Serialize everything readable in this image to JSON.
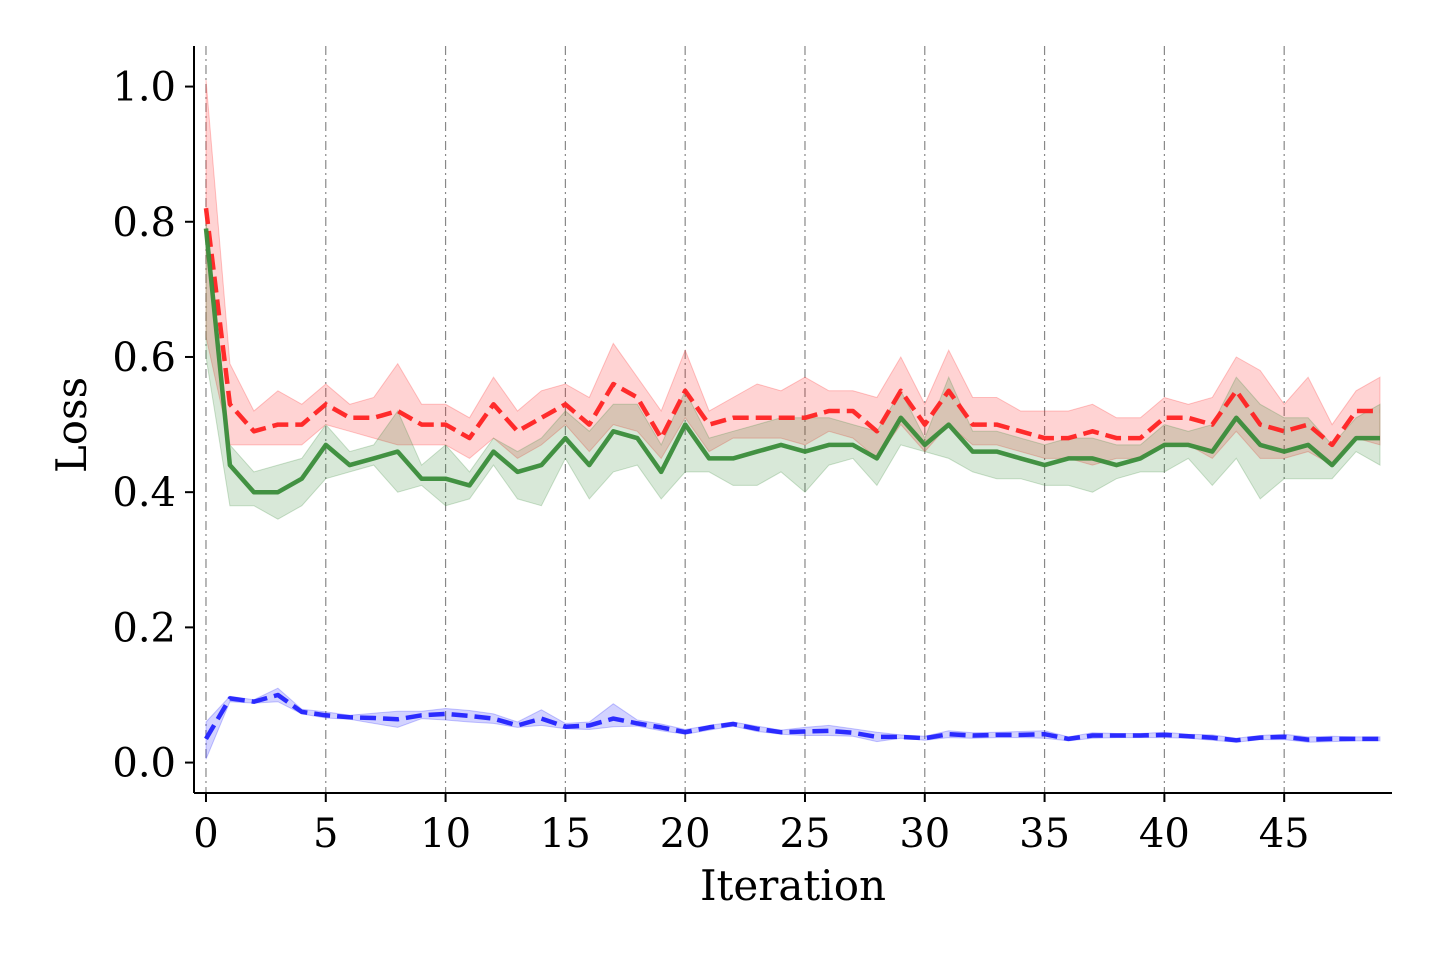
{
  "chart_data": {
    "type": "line",
    "title": "",
    "xlabel": "Iteration",
    "ylabel": "Loss",
    "xlim": [
      -0.5,
      49.5
    ],
    "ylim": [
      -0.045,
      1.06
    ],
    "xticks": [
      0,
      5,
      10,
      15,
      20,
      25,
      30,
      35,
      40,
      45
    ],
    "xtick_labels": [
      "0",
      "5",
      "10",
      "15",
      "20",
      "25",
      "30",
      "35",
      "40",
      "45"
    ],
    "yticks": [
      0.0,
      0.2,
      0.4,
      0.6,
      0.8,
      1.0
    ],
    "ytick_labels": [
      "0.0",
      "0.2",
      "0.4",
      "0.6",
      "0.8",
      "1.0"
    ],
    "grid": "vertical dash-dot",
    "x": [
      0,
      1,
      2,
      3,
      4,
      5,
      6,
      7,
      8,
      9,
      10,
      11,
      12,
      13,
      14,
      15,
      16,
      17,
      18,
      19,
      20,
      21,
      22,
      23,
      24,
      25,
      26,
      27,
      28,
      29,
      30,
      31,
      32,
      33,
      34,
      35,
      36,
      37,
      38,
      39,
      40,
      41,
      42,
      43,
      44,
      45,
      46,
      47,
      48,
      49
    ],
    "series": [
      {
        "name": "red",
        "color": "#ff2222",
        "style": "dashed",
        "values": [
          0.82,
          0.53,
          0.49,
          0.5,
          0.5,
          0.53,
          0.51,
          0.51,
          0.52,
          0.5,
          0.5,
          0.48,
          0.53,
          0.49,
          0.51,
          0.53,
          0.5,
          0.56,
          0.54,
          0.48,
          0.55,
          0.5,
          0.51,
          0.51,
          0.51,
          0.51,
          0.52,
          0.52,
          0.49,
          0.55,
          0.5,
          0.55,
          0.5,
          0.5,
          0.49,
          0.48,
          0.48,
          0.49,
          0.48,
          0.48,
          0.51,
          0.51,
          0.5,
          0.55,
          0.5,
          0.49,
          0.5,
          0.47,
          0.52,
          0.52
        ],
        "lower": [
          0.63,
          0.47,
          0.47,
          0.47,
          0.47,
          0.5,
          0.49,
          0.48,
          0.47,
          0.47,
          0.47,
          0.45,
          0.48,
          0.45,
          0.47,
          0.5,
          0.46,
          0.5,
          0.49,
          0.45,
          0.51,
          0.46,
          0.48,
          0.48,
          0.48,
          0.47,
          0.49,
          0.48,
          0.45,
          0.5,
          0.46,
          0.5,
          0.47,
          0.47,
          0.46,
          0.45,
          0.45,
          0.44,
          0.45,
          0.45,
          0.47,
          0.47,
          0.45,
          0.49,
          0.45,
          0.45,
          0.46,
          0.44,
          0.48,
          0.47
        ],
        "upper": [
          1.01,
          0.59,
          0.52,
          0.55,
          0.53,
          0.56,
          0.53,
          0.54,
          0.59,
          0.53,
          0.53,
          0.51,
          0.57,
          0.52,
          0.55,
          0.56,
          0.54,
          0.62,
          0.57,
          0.52,
          0.61,
          0.52,
          0.54,
          0.56,
          0.55,
          0.57,
          0.55,
          0.55,
          0.54,
          0.6,
          0.53,
          0.61,
          0.54,
          0.54,
          0.52,
          0.52,
          0.52,
          0.53,
          0.51,
          0.51,
          0.54,
          0.53,
          0.54,
          0.6,
          0.58,
          0.53,
          0.57,
          0.5,
          0.55,
          0.57
        ]
      },
      {
        "name": "green",
        "color": "#3a8c3a",
        "style": "solid",
        "values": [
          0.79,
          0.44,
          0.4,
          0.4,
          0.42,
          0.47,
          0.44,
          0.45,
          0.46,
          0.42,
          0.42,
          0.41,
          0.46,
          0.43,
          0.44,
          0.48,
          0.44,
          0.49,
          0.48,
          0.43,
          0.5,
          0.45,
          0.45,
          0.46,
          0.47,
          0.46,
          0.47,
          0.47,
          0.45,
          0.51,
          0.47,
          0.5,
          0.46,
          0.46,
          0.45,
          0.44,
          0.45,
          0.45,
          0.44,
          0.45,
          0.47,
          0.47,
          0.46,
          0.51,
          0.47,
          0.46,
          0.47,
          0.44,
          0.48,
          0.48
        ],
        "lower": [
          0.6,
          0.38,
          0.38,
          0.36,
          0.38,
          0.42,
          0.43,
          0.44,
          0.4,
          0.41,
          0.38,
          0.39,
          0.44,
          0.39,
          0.38,
          0.45,
          0.39,
          0.43,
          0.44,
          0.39,
          0.43,
          0.43,
          0.41,
          0.41,
          0.43,
          0.4,
          0.44,
          0.45,
          0.41,
          0.47,
          0.46,
          0.45,
          0.43,
          0.42,
          0.42,
          0.41,
          0.41,
          0.4,
          0.42,
          0.43,
          0.43,
          0.45,
          0.41,
          0.45,
          0.39,
          0.42,
          0.42,
          0.42,
          0.46,
          0.44
        ],
        "upper": [
          0.8,
          0.47,
          0.43,
          0.44,
          0.45,
          0.5,
          0.46,
          0.47,
          0.52,
          0.44,
          0.47,
          0.43,
          0.48,
          0.46,
          0.48,
          0.52,
          0.49,
          0.53,
          0.53,
          0.47,
          0.55,
          0.48,
          0.49,
          0.5,
          0.51,
          0.51,
          0.51,
          0.5,
          0.49,
          0.55,
          0.48,
          0.57,
          0.49,
          0.49,
          0.48,
          0.47,
          0.48,
          0.48,
          0.47,
          0.47,
          0.5,
          0.49,
          0.5,
          0.57,
          0.53,
          0.51,
          0.51,
          0.47,
          0.51,
          0.53
        ]
      },
      {
        "name": "blue",
        "color": "#2222ff",
        "style": "dashed",
        "values": [
          0.035,
          0.095,
          0.09,
          0.1,
          0.075,
          0.07,
          0.067,
          0.066,
          0.064,
          0.07,
          0.072,
          0.069,
          0.065,
          0.055,
          0.065,
          0.053,
          0.055,
          0.065,
          0.058,
          0.052,
          0.045,
          0.052,
          0.057,
          0.05,
          0.045,
          0.046,
          0.047,
          0.044,
          0.038,
          0.038,
          0.036,
          0.042,
          0.04,
          0.041,
          0.041,
          0.042,
          0.035,
          0.04,
          0.04,
          0.04,
          0.041,
          0.039,
          0.037,
          0.033,
          0.037,
          0.038,
          0.034,
          0.035,
          0.035,
          0.035
        ],
        "lower": [
          0.005,
          0.09,
          0.088,
          0.09,
          0.072,
          0.066,
          0.064,
          0.058,
          0.052,
          0.065,
          0.063,
          0.06,
          0.058,
          0.052,
          0.055,
          0.05,
          0.049,
          0.053,
          0.054,
          0.047,
          0.042,
          0.048,
          0.054,
          0.046,
          0.042,
          0.04,
          0.04,
          0.039,
          0.031,
          0.036,
          0.033,
          0.037,
          0.036,
          0.037,
          0.037,
          0.036,
          0.032,
          0.036,
          0.037,
          0.037,
          0.037,
          0.036,
          0.033,
          0.03,
          0.034,
          0.034,
          0.03,
          0.031,
          0.032,
          0.032
        ],
        "upper": [
          0.06,
          0.098,
          0.093,
          0.11,
          0.079,
          0.075,
          0.07,
          0.073,
          0.076,
          0.076,
          0.08,
          0.077,
          0.072,
          0.06,
          0.078,
          0.058,
          0.06,
          0.087,
          0.063,
          0.057,
          0.049,
          0.055,
          0.06,
          0.054,
          0.048,
          0.052,
          0.055,
          0.05,
          0.045,
          0.041,
          0.039,
          0.047,
          0.044,
          0.045,
          0.046,
          0.047,
          0.038,
          0.044,
          0.043,
          0.043,
          0.045,
          0.042,
          0.041,
          0.036,
          0.04,
          0.042,
          0.038,
          0.039,
          0.038,
          0.038
        ]
      }
    ]
  }
}
